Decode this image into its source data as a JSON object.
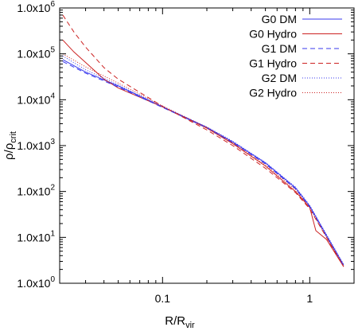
{
  "chart_data": {
    "type": "line",
    "xlabel": "R/R",
    "xlabel_sub": "vir",
    "ylabel": "ρ/ρ",
    "ylabel_sub": "crit",
    "x_scale": "log",
    "y_scale": "log",
    "xlim": [
      0.02,
      2.0
    ],
    "ylim": [
      1,
      1000000
    ],
    "grid": false,
    "legend_position": "top-right",
    "x_ticks": [
      {
        "value": 0.1,
        "label": "0.1"
      },
      {
        "value": 1,
        "label": "1"
      }
    ],
    "y_ticks": [
      {
        "value": 1,
        "mant": "1.0x10",
        "exp": "0"
      },
      {
        "value": 10,
        "mant": "1.0x10",
        "exp": "1"
      },
      {
        "value": 100,
        "mant": "1.0x10",
        "exp": "2"
      },
      {
        "value": 1000,
        "mant": "1.0x10",
        "exp": "3"
      },
      {
        "value": 10000,
        "mant": "1.0x10",
        "exp": "4"
      },
      {
        "value": 100000,
        "mant": "1.0x10",
        "exp": "5"
      },
      {
        "value": 1000000,
        "mant": "1.0x10",
        "exp": "6"
      }
    ],
    "series": [
      {
        "name": "G0 DM",
        "color": "#3a3aee",
        "dash": "solid",
        "x": [
          0.021,
          0.03,
          0.05,
          0.1,
          0.2,
          0.3,
          0.5,
          0.8,
          1.0,
          1.3,
          1.7
        ],
        "y": [
          75000,
          40000,
          20000,
          7000,
          2500,
          1200,
          420,
          120,
          48,
          11,
          2.5
        ]
      },
      {
        "name": "G0 Hydro",
        "color": "#cc2222",
        "dash": "solid",
        "x": [
          0.021,
          0.025,
          0.03,
          0.04,
          0.05,
          0.1,
          0.2,
          0.3,
          0.5,
          0.8,
          1.0,
          1.1,
          1.3,
          1.7
        ],
        "y": [
          200000,
          110000,
          65000,
          28000,
          18000,
          7000,
          2400,
          1100,
          360,
          100,
          45,
          14,
          9,
          2.3
        ]
      },
      {
        "name": "G1 DM",
        "color": "#3a3aee",
        "dash": "6,4",
        "x": [
          0.021,
          0.03,
          0.05,
          0.1,
          0.2,
          0.3,
          0.5,
          0.8,
          1.0,
          1.3,
          1.7
        ],
        "y": [
          68000,
          38000,
          19000,
          6800,
          2450,
          1150,
          400,
          115,
          46,
          10.5,
          2.4
        ]
      },
      {
        "name": "G1 Hydro",
        "color": "#cc2222",
        "dash": "6,4",
        "x": [
          0.021,
          0.025,
          0.03,
          0.04,
          0.05,
          0.1,
          0.2,
          0.3,
          0.5,
          0.8,
          1.0,
          1.3,
          1.7
        ],
        "y": [
          700000,
          300000,
          140000,
          50000,
          28000,
          7200,
          2200,
          1000,
          320,
          95,
          42,
          10,
          2.3
        ]
      },
      {
        "name": "G2 DM",
        "color": "#3a3aee",
        "dash": "1,2",
        "x": [
          0.021,
          0.03,
          0.05,
          0.1,
          0.2,
          0.3,
          0.5,
          0.8,
          1.0,
          1.3,
          1.7
        ],
        "y": [
          90000,
          45000,
          21000,
          7100,
          2550,
          1250,
          430,
          125,
          50,
          11.5,
          2.6
        ]
      },
      {
        "name": "G2 Hydro",
        "color": "#cc2222",
        "dash": "1,2",
        "x": [
          0.021,
          0.03,
          0.05,
          0.1,
          0.2,
          0.3,
          0.5,
          0.8,
          1.0,
          1.3,
          1.7
        ],
        "y": [
          100000,
          52000,
          23000,
          7300,
          2500,
          1150,
          380,
          110,
          44,
          10,
          2.4
        ]
      }
    ]
  }
}
